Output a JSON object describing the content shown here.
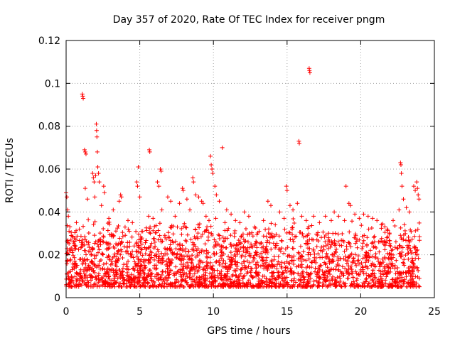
{
  "chart_data": {
    "type": "scatter",
    "title": "Day 357 of 2020, Rate Of TEC Index for receiver pngm",
    "xlabel": "GPS time / hours",
    "ylabel": "ROTI / TECUs",
    "xlim": [
      0,
      25
    ],
    "ylim": [
      0,
      0.12
    ],
    "x_ticks": [
      0,
      5,
      10,
      15,
      20,
      25
    ],
    "y_ticks": [
      0,
      0.02,
      0.04,
      0.06,
      0.08,
      0.1,
      0.12
    ],
    "x_tick_labels": [
      "0",
      "5",
      "10",
      "15",
      "20",
      "25"
    ],
    "y_tick_labels": [
      "0",
      "0.02",
      "0.04",
      "0.06",
      "0.08",
      "0.1",
      "0.12"
    ],
    "grid": true,
    "marker": "plus",
    "color": "#ff0000",
    "series": [
      {
        "name": "ROTI",
        "points": [
          [
            0.0,
            0.049
          ],
          [
            0.05,
            0.047
          ],
          [
            0.1,
            0.041
          ],
          [
            0.15,
            0.038
          ],
          [
            0.2,
            0.031
          ],
          [
            0.35,
            0.029
          ],
          [
            0.5,
            0.026
          ],
          [
            0.7,
            0.035
          ],
          [
            0.9,
            0.032
          ],
          [
            1.1,
            0.095
          ],
          [
            1.13,
            0.094
          ],
          [
            1.16,
            0.093
          ],
          [
            1.25,
            0.069
          ],
          [
            1.3,
            0.068
          ],
          [
            1.35,
            0.067
          ],
          [
            1.3,
            0.051
          ],
          [
            1.45,
            0.046
          ],
          [
            1.8,
            0.058
          ],
          [
            1.85,
            0.056
          ],
          [
            1.9,
            0.054
          ],
          [
            1.95,
            0.047
          ],
          [
            2.0,
            0.057
          ],
          [
            2.05,
            0.081
          ],
          [
            2.07,
            0.078
          ],
          [
            2.09,
            0.075
          ],
          [
            2.12,
            0.068
          ],
          [
            2.15,
            0.061
          ],
          [
            2.2,
            0.058
          ],
          [
            2.25,
            0.054
          ],
          [
            2.4,
            0.043
          ],
          [
            2.55,
            0.052
          ],
          [
            2.6,
            0.049
          ],
          [
            2.9,
            0.037
          ],
          [
            3.2,
            0.041
          ],
          [
            3.6,
            0.045
          ],
          [
            3.7,
            0.048
          ],
          [
            3.75,
            0.047
          ],
          [
            4.2,
            0.036
          ],
          [
            4.5,
            0.035
          ],
          [
            4.8,
            0.054
          ],
          [
            4.85,
            0.052
          ],
          [
            4.9,
            0.061
          ],
          [
            5.0,
            0.047
          ],
          [
            5.2,
            0.031
          ],
          [
            5.6,
            0.038
          ],
          [
            5.7,
            0.033
          ],
          [
            5.65,
            0.069
          ],
          [
            5.68,
            0.068
          ],
          [
            5.9,
            0.037
          ],
          [
            6.2,
            0.054
          ],
          [
            6.3,
            0.052
          ],
          [
            6.4,
            0.06
          ],
          [
            6.45,
            0.059
          ],
          [
            6.5,
            0.041
          ],
          [
            6.9,
            0.047
          ],
          [
            7.1,
            0.045
          ],
          [
            7.4,
            0.038
          ],
          [
            7.7,
            0.044
          ],
          [
            7.9,
            0.051
          ],
          [
            7.95,
            0.05
          ],
          [
            8.2,
            0.046
          ],
          [
            8.4,
            0.041
          ],
          [
            8.6,
            0.056
          ],
          [
            8.65,
            0.054
          ],
          [
            8.8,
            0.048
          ],
          [
            9.0,
            0.047
          ],
          [
            9.2,
            0.045
          ],
          [
            9.3,
            0.044
          ],
          [
            9.5,
            0.038
          ],
          [
            9.7,
            0.036
          ],
          [
            9.8,
            0.066
          ],
          [
            9.85,
            0.062
          ],
          [
            9.9,
            0.06
          ],
          [
            9.95,
            0.058
          ],
          [
            10.1,
            0.052
          ],
          [
            10.2,
            0.048
          ],
          [
            10.4,
            0.045
          ],
          [
            10.6,
            0.07
          ],
          [
            10.9,
            0.041
          ],
          [
            11.2,
            0.039
          ],
          [
            11.5,
            0.036
          ],
          [
            11.8,
            0.035
          ],
          [
            12.1,
            0.04
          ],
          [
            12.4,
            0.038
          ],
          [
            12.8,
            0.033
          ],
          [
            13.1,
            0.031
          ],
          [
            13.4,
            0.036
          ],
          [
            13.7,
            0.045
          ],
          [
            13.9,
            0.043
          ],
          [
            14.2,
            0.034
          ],
          [
            14.5,
            0.04
          ],
          [
            14.8,
            0.037
          ],
          [
            14.95,
            0.052
          ],
          [
            15.0,
            0.05
          ],
          [
            15.2,
            0.043
          ],
          [
            15.4,
            0.041
          ],
          [
            15.7,
            0.044
          ],
          [
            15.8,
            0.073
          ],
          [
            15.83,
            0.072
          ],
          [
            16.0,
            0.038
          ],
          [
            16.3,
            0.036
          ],
          [
            16.5,
            0.107
          ],
          [
            16.52,
            0.106
          ],
          [
            16.55,
            0.105
          ],
          [
            16.8,
            0.038
          ],
          [
            17.2,
            0.035
          ],
          [
            17.6,
            0.038
          ],
          [
            18.0,
            0.036
          ],
          [
            18.2,
            0.04
          ],
          [
            18.5,
            0.038
          ],
          [
            18.9,
            0.036
          ],
          [
            19.0,
            0.052
          ],
          [
            19.2,
            0.044
          ],
          [
            19.3,
            0.043
          ],
          [
            19.6,
            0.039
          ],
          [
            19.9,
            0.037
          ],
          [
            20.2,
            0.039
          ],
          [
            20.5,
            0.038
          ],
          [
            20.8,
            0.037
          ],
          [
            21.1,
            0.036
          ],
          [
            21.4,
            0.034
          ],
          [
            21.8,
            0.032
          ],
          [
            22.2,
            0.036
          ],
          [
            22.6,
            0.041
          ],
          [
            22.7,
            0.063
          ],
          [
            22.73,
            0.062
          ],
          [
            22.76,
            0.058
          ],
          [
            22.8,
            0.052
          ],
          [
            22.9,
            0.046
          ],
          [
            23.1,
            0.042
          ],
          [
            23.3,
            0.04
          ],
          [
            23.6,
            0.052
          ],
          [
            23.7,
            0.05
          ],
          [
            23.8,
            0.054
          ],
          [
            23.85,
            0.051
          ],
          [
            23.9,
            0.048
          ],
          [
            23.95,
            0.046
          ]
        ]
      }
    ],
    "noise_band": {
      "x_range": [
        0,
        24
      ],
      "typical_min": 0.005,
      "typical_max": 0.03,
      "count": 2400
    }
  }
}
